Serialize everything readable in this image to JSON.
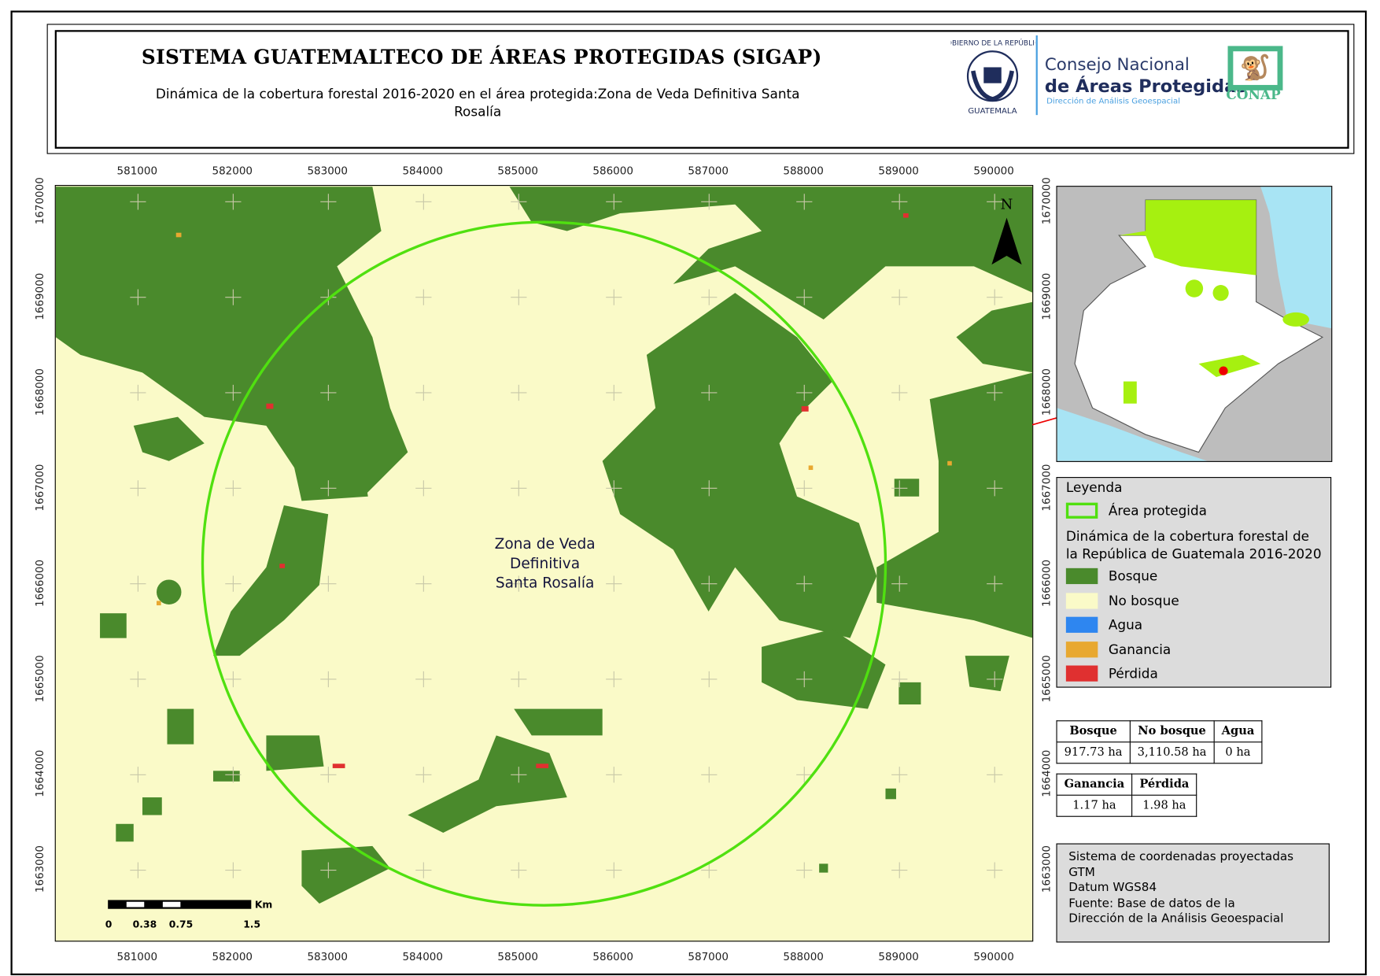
{
  "header": {
    "title": "SISTEMA GUATEMALTECO DE ÁREAS PROTEGIDAS  (SIGAP)",
    "subtitle": "Dinámica de la cobertura forestal 2016-2020 en el área protegida:Zona de Veda Definitiva Santa Rosalía",
    "logos": {
      "gobierno": "GOBIERNO DE LA REPÚBLICA GUATEMALA",
      "consejo_line1": "Consejo Nacional",
      "consejo_line2": "de Áreas Protegidas",
      "consejo_line3": "Dirección de Análisis Geoespacial",
      "conap": "CONAP"
    }
  },
  "map": {
    "x_ticks": [
      "581000",
      "582000",
      "583000",
      "584000",
      "585000",
      "586000",
      "587000",
      "588000",
      "589000",
      "590000"
    ],
    "y_ticks": [
      "1670000",
      "1669000",
      "1668000",
      "1667000",
      "1666000",
      "1665000",
      "1664000",
      "1663000"
    ],
    "area_label": [
      "Zona de Veda",
      "Definitiva",
      "Santa Rosalía"
    ],
    "north_label": "N",
    "scale_bar": {
      "unit": "Km",
      "labels": [
        "0",
        "0.38",
        "0.75",
        "1.5"
      ]
    },
    "colors": {
      "bosque": "#4a8a2c",
      "no_bosque": "#fafac8",
      "agua": "#2e86f0",
      "ganancia": "#e8a830",
      "perdida": "#e03030",
      "area_protegida": "#50e010"
    }
  },
  "legend": {
    "title": "Leyenda",
    "area_item": "Área protegida",
    "section_title": "Dinámica de la cobertura forestal de la República de Guatemala 2016-2020",
    "items": [
      {
        "label": "Bosque",
        "color": "#4a8a2c"
      },
      {
        "label": "No bosque",
        "color": "#fafac8"
      },
      {
        "label": "Agua",
        "color": "#2e86f0"
      },
      {
        "label": "Ganancia",
        "color": "#e8a830"
      },
      {
        "label": "Pérdida",
        "color": "#e03030"
      }
    ]
  },
  "stats": {
    "table1": {
      "headers": [
        "Bosque",
        "No bosque",
        "Agua"
      ],
      "values": [
        "917.73 ha",
        "3,110.58 ha",
        "0 ha"
      ]
    },
    "table2": {
      "headers": [
        "Ganancia",
        "Pérdida"
      ],
      "values": [
        "1.17 ha",
        "1.98 ha"
      ]
    }
  },
  "info": [
    "Sistema de coordenadas proyectadas",
    "GTM",
    "Datum WGS84",
    "Fuente: Base de datos de la",
    "Dirección de la Análisis Geoespacial"
  ]
}
